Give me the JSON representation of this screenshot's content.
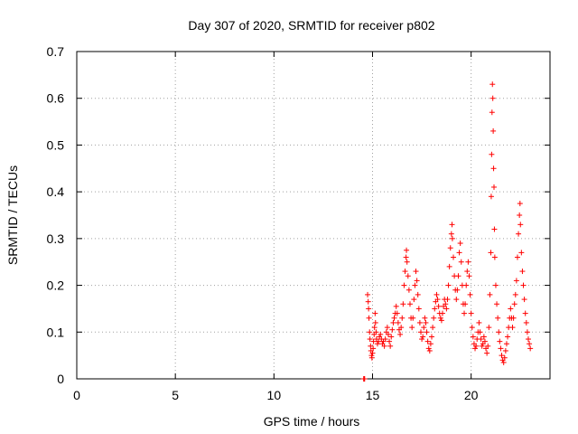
{
  "chart_data": {
    "type": "scatter",
    "title": "Day 307 of 2020, SRMTID for receiver p802",
    "xlabel": "GPS time / hours",
    "ylabel": "SRMTID / TECUs",
    "xlim": [
      0,
      24
    ],
    "ylim": [
      0,
      0.7
    ],
    "xticks": [
      0,
      5,
      10,
      15,
      20
    ],
    "xtick_labels": [
      "0",
      "5",
      "10",
      "15",
      "20"
    ],
    "yticks": [
      0,
      0.1,
      0.2,
      0.3,
      0.4,
      0.5,
      0.6,
      0.7
    ],
    "ytick_labels": [
      "0",
      "0.1",
      "0.2",
      "0.3",
      "0.4",
      "0.5",
      "0.6",
      "0.7"
    ],
    "grid": true,
    "marker": "+",
    "color": "#ff0000",
    "series": [
      {
        "name": "p802",
        "points": [
          [
            14.55,
            0.0
          ],
          [
            14.58,
            0.0
          ],
          [
            14.6,
            0.0
          ],
          [
            14.75,
            0.18
          ],
          [
            14.78,
            0.165
          ],
          [
            14.8,
            0.15
          ],
          [
            14.82,
            0.13
          ],
          [
            14.85,
            0.1
          ],
          [
            14.87,
            0.085
          ],
          [
            14.9,
            0.07
          ],
          [
            14.92,
            0.06
          ],
          [
            14.95,
            0.05
          ],
          [
            14.97,
            0.045
          ],
          [
            15.0,
            0.055
          ],
          [
            15.03,
            0.065
          ],
          [
            15.05,
            0.08
          ],
          [
            15.08,
            0.095
          ],
          [
            15.1,
            0.11
          ],
          [
            15.13,
            0.14
          ],
          [
            15.15,
            0.12
          ],
          [
            15.18,
            0.1
          ],
          [
            15.2,
            0.085
          ],
          [
            15.25,
            0.075
          ],
          [
            15.3,
            0.08
          ],
          [
            15.35,
            0.09
          ],
          [
            15.4,
            0.095
          ],
          [
            15.45,
            0.085
          ],
          [
            15.5,
            0.075
          ],
          [
            15.55,
            0.08
          ],
          [
            15.6,
            0.07
          ],
          [
            15.65,
            0.085
          ],
          [
            15.7,
            0.1
          ],
          [
            15.75,
            0.11
          ],
          [
            15.8,
            0.095
          ],
          [
            15.85,
            0.08
          ],
          [
            15.9,
            0.07
          ],
          [
            15.95,
            0.09
          ],
          [
            16.0,
            0.105
          ],
          [
            16.05,
            0.12
          ],
          [
            16.1,
            0.13
          ],
          [
            16.15,
            0.14
          ],
          [
            16.2,
            0.155
          ],
          [
            16.25,
            0.14
          ],
          [
            16.3,
            0.12
          ],
          [
            16.35,
            0.105
          ],
          [
            16.4,
            0.095
          ],
          [
            16.45,
            0.11
          ],
          [
            16.5,
            0.13
          ],
          [
            16.55,
            0.16
          ],
          [
            16.6,
            0.2
          ],
          [
            16.65,
            0.23
          ],
          [
            16.7,
            0.26
          ],
          [
            16.72,
            0.275
          ],
          [
            16.75,
            0.25
          ],
          [
            16.8,
            0.22
          ],
          [
            16.85,
            0.19
          ],
          [
            16.9,
            0.16
          ],
          [
            16.95,
            0.13
          ],
          [
            17.0,
            0.11
          ],
          [
            17.05,
            0.13
          ],
          [
            17.1,
            0.17
          ],
          [
            17.15,
            0.2
          ],
          [
            17.2,
            0.23
          ],
          [
            17.25,
            0.21
          ],
          [
            17.3,
            0.18
          ],
          [
            17.35,
            0.15
          ],
          [
            17.4,
            0.12
          ],
          [
            17.45,
            0.1
          ],
          [
            17.5,
            0.085
          ],
          [
            17.55,
            0.09
          ],
          [
            17.6,
            0.11
          ],
          [
            17.65,
            0.13
          ],
          [
            17.7,
            0.12
          ],
          [
            17.75,
            0.1
          ],
          [
            17.8,
            0.08
          ],
          [
            17.85,
            0.065
          ],
          [
            17.9,
            0.06
          ],
          [
            17.95,
            0.075
          ],
          [
            18.0,
            0.09
          ],
          [
            18.05,
            0.11
          ],
          [
            18.1,
            0.13
          ],
          [
            18.15,
            0.15
          ],
          [
            18.2,
            0.165
          ],
          [
            18.25,
            0.18
          ],
          [
            18.3,
            0.17
          ],
          [
            18.35,
            0.155
          ],
          [
            18.4,
            0.14
          ],
          [
            18.45,
            0.13
          ],
          [
            18.5,
            0.125
          ],
          [
            18.55,
            0.14
          ],
          [
            18.6,
            0.155
          ],
          [
            18.65,
            0.17
          ],
          [
            18.7,
            0.16
          ],
          [
            18.75,
            0.15
          ],
          [
            18.8,
            0.17
          ],
          [
            18.85,
            0.2
          ],
          [
            18.9,
            0.24
          ],
          [
            18.95,
            0.28
          ],
          [
            19.0,
            0.31
          ],
          [
            19.03,
            0.33
          ],
          [
            19.05,
            0.3
          ],
          [
            19.1,
            0.26
          ],
          [
            19.15,
            0.22
          ],
          [
            19.2,
            0.19
          ],
          [
            19.25,
            0.17
          ],
          [
            19.3,
            0.19
          ],
          [
            19.35,
            0.22
          ],
          [
            19.4,
            0.27
          ],
          [
            19.45,
            0.29
          ],
          [
            19.5,
            0.25
          ],
          [
            19.55,
            0.2
          ],
          [
            19.6,
            0.16
          ],
          [
            19.65,
            0.14
          ],
          [
            19.7,
            0.16
          ],
          [
            19.75,
            0.2
          ],
          [
            19.8,
            0.23
          ],
          [
            19.85,
            0.25
          ],
          [
            19.9,
            0.22
          ],
          [
            19.95,
            0.18
          ],
          [
            20.0,
            0.14
          ],
          [
            20.05,
            0.11
          ],
          [
            20.1,
            0.09
          ],
          [
            20.15,
            0.075
          ],
          [
            20.2,
            0.065
          ],
          [
            20.25,
            0.07
          ],
          [
            20.3,
            0.085
          ],
          [
            20.35,
            0.1
          ],
          [
            20.4,
            0.12
          ],
          [
            20.45,
            0.1
          ],
          [
            20.5,
            0.085
          ],
          [
            20.55,
            0.07
          ],
          [
            20.6,
            0.075
          ],
          [
            20.65,
            0.09
          ],
          [
            20.7,
            0.08
          ],
          [
            20.75,
            0.065
          ],
          [
            20.8,
            0.055
          ],
          [
            20.85,
            0.07
          ],
          [
            20.9,
            0.11
          ],
          [
            20.95,
            0.18
          ],
          [
            21.0,
            0.27
          ],
          [
            21.02,
            0.39
          ],
          [
            21.04,
            0.48
          ],
          [
            21.06,
            0.57
          ],
          [
            21.08,
            0.63
          ],
          [
            21.1,
            0.6
          ],
          [
            21.12,
            0.53
          ],
          [
            21.14,
            0.45
          ],
          [
            21.16,
            0.41
          ],
          [
            21.18,
            0.32
          ],
          [
            21.2,
            0.26
          ],
          [
            21.25,
            0.2
          ],
          [
            21.3,
            0.16
          ],
          [
            21.35,
            0.13
          ],
          [
            21.4,
            0.1
          ],
          [
            21.45,
            0.08
          ],
          [
            21.5,
            0.065
          ],
          [
            21.55,
            0.05
          ],
          [
            21.6,
            0.04
          ],
          [
            21.65,
            0.035
          ],
          [
            21.7,
            0.045
          ],
          [
            21.75,
            0.06
          ],
          [
            21.8,
            0.075
          ],
          [
            21.85,
            0.09
          ],
          [
            21.9,
            0.11
          ],
          [
            21.95,
            0.13
          ],
          [
            22.0,
            0.15
          ],
          [
            22.05,
            0.13
          ],
          [
            22.1,
            0.11
          ],
          [
            22.15,
            0.13
          ],
          [
            22.2,
            0.16
          ],
          [
            22.25,
            0.18
          ],
          [
            22.3,
            0.21
          ],
          [
            22.35,
            0.26
          ],
          [
            22.4,
            0.31
          ],
          [
            22.45,
            0.35
          ],
          [
            22.48,
            0.375
          ],
          [
            22.5,
            0.33
          ],
          [
            22.55,
            0.27
          ],
          [
            22.6,
            0.23
          ],
          [
            22.65,
            0.2
          ],
          [
            22.7,
            0.17
          ],
          [
            22.75,
            0.14
          ],
          [
            22.8,
            0.12
          ],
          [
            22.85,
            0.1
          ],
          [
            22.9,
            0.085
          ],
          [
            22.95,
            0.075
          ],
          [
            23.0,
            0.065
          ]
        ]
      }
    ]
  }
}
